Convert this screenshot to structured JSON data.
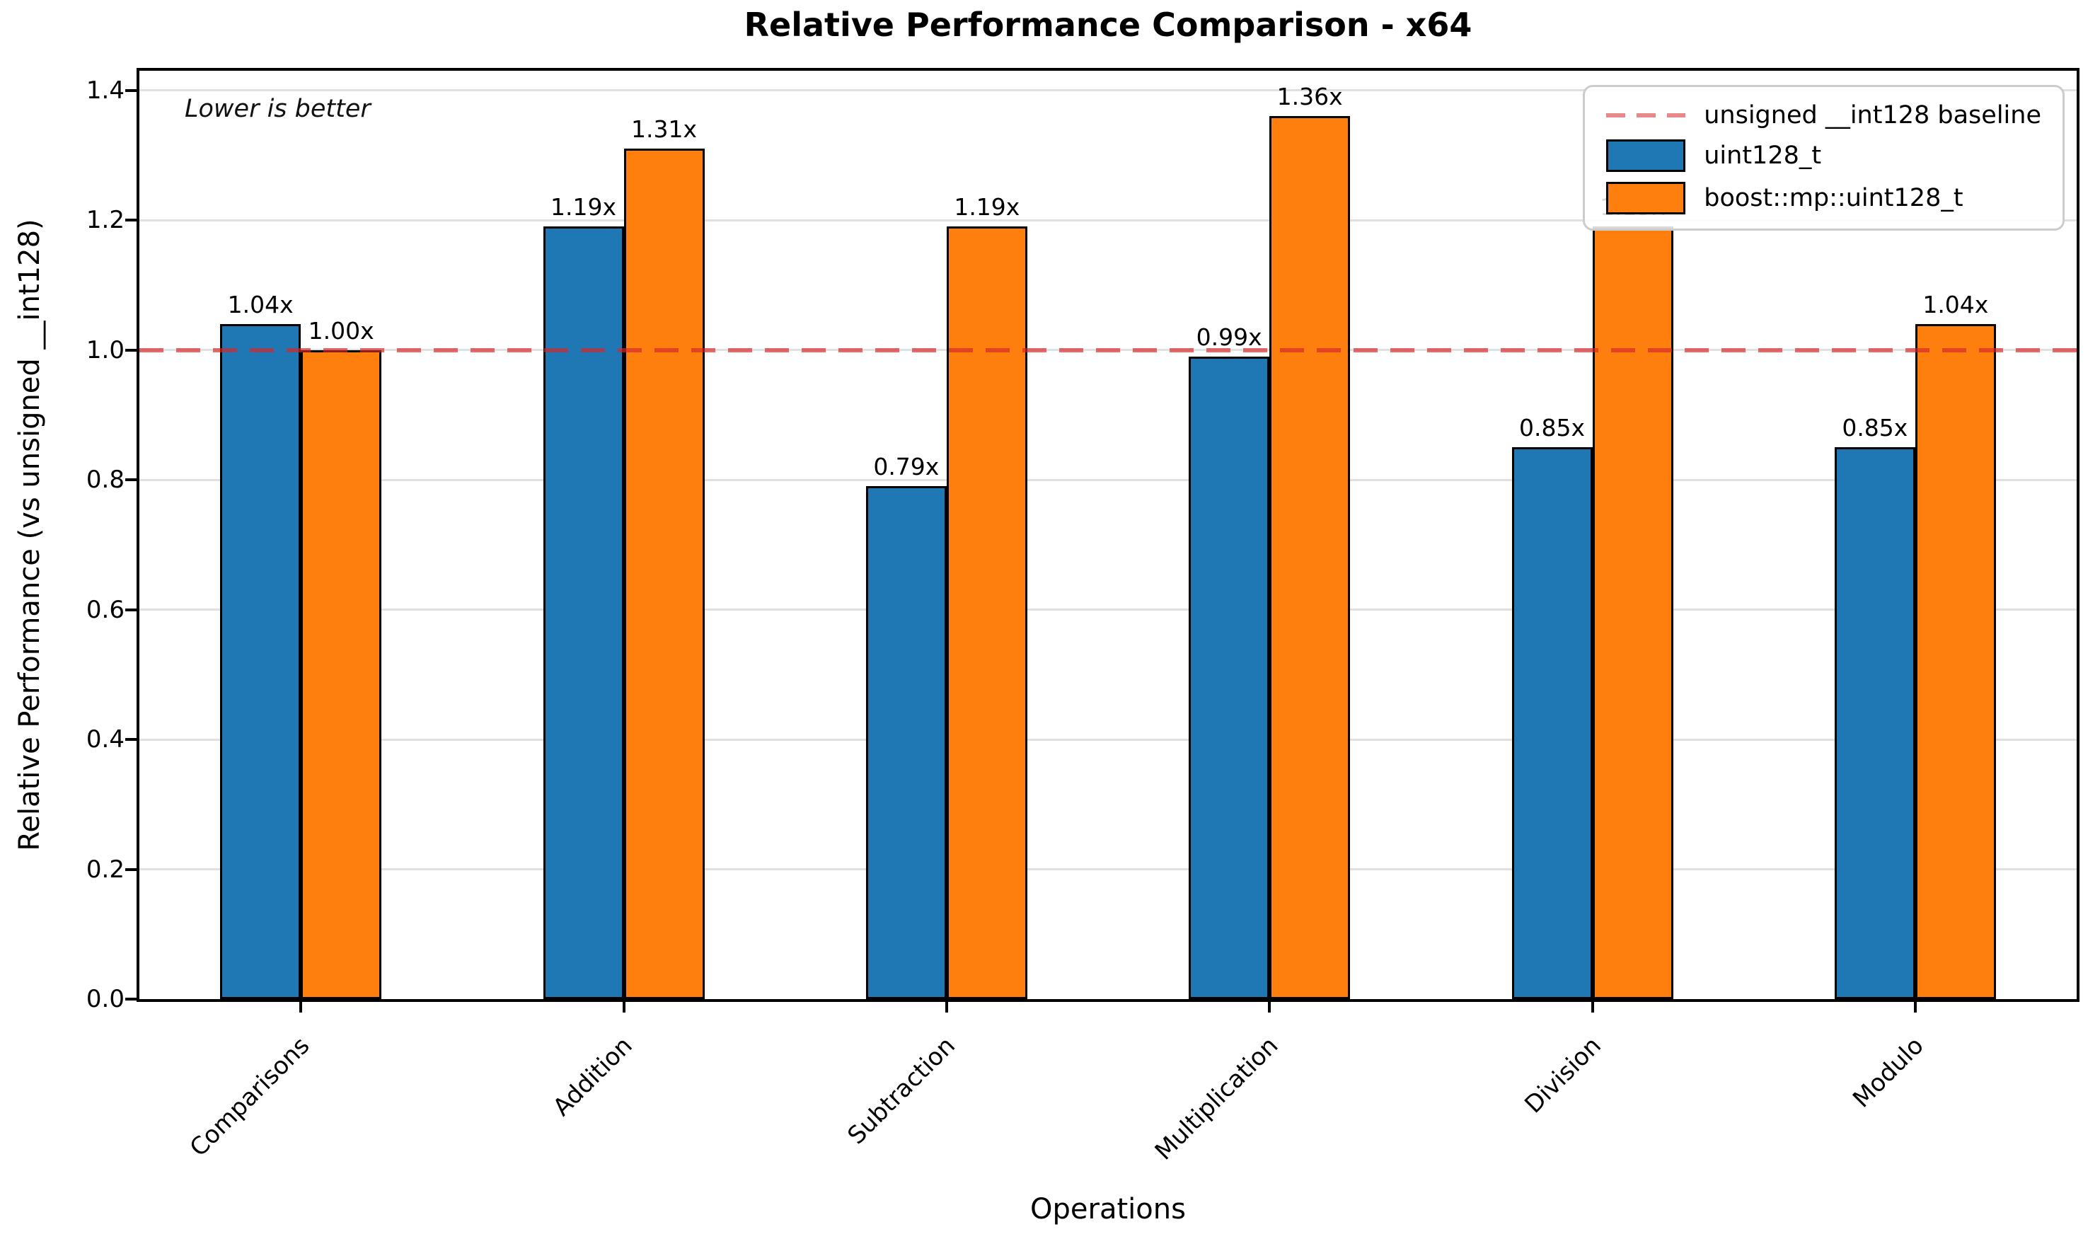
{
  "chart_data": {
    "type": "bar",
    "title": "Relative Performance Comparison - x64",
    "annotation": "Lower is better",
    "xlabel": "Operations",
    "ylabel": "Relative Performance (vs unsigned __int128)",
    "categories": [
      "Comparisons",
      "Addition",
      "Subtraction",
      "Multiplication",
      "Division",
      "Modulo"
    ],
    "series": [
      {
        "name": "uint128_t",
        "color": "#1f77b4",
        "values": [
          1.04,
          1.19,
          0.79,
          0.99,
          0.85,
          0.85
        ],
        "labels": [
          "1.04x",
          "1.19x",
          "0.79x",
          "0.99x",
          "0.85x",
          "0.85x"
        ]
      },
      {
        "name": "boost::mp::uint128_t",
        "color": "#ff7f0e",
        "values": [
          1.0,
          1.31,
          1.19,
          1.36,
          1.19,
          1.04
        ],
        "labels": [
          "1.00x",
          "1.31x",
          "1.19x",
          "1.36x",
          "1.19x",
          "1.04x"
        ]
      }
    ],
    "baseline": {
      "value": 1.0,
      "label": "unsigned __int128 baseline",
      "color": "#d62728",
      "style": "dashed"
    },
    "ylim": [
      0.0,
      1.43
    ],
    "yticks": [
      0.0,
      0.2,
      0.4,
      0.6,
      0.8,
      1.0,
      1.2,
      1.4
    ],
    "ytick_labels": [
      "0.0",
      "0.2",
      "0.4",
      "0.6",
      "0.8",
      "1.0",
      "1.2",
      "1.4"
    ],
    "grid": true,
    "legend_position": "upper right",
    "edge_color": "#000000",
    "grid_color": "#e0e0e0"
  }
}
